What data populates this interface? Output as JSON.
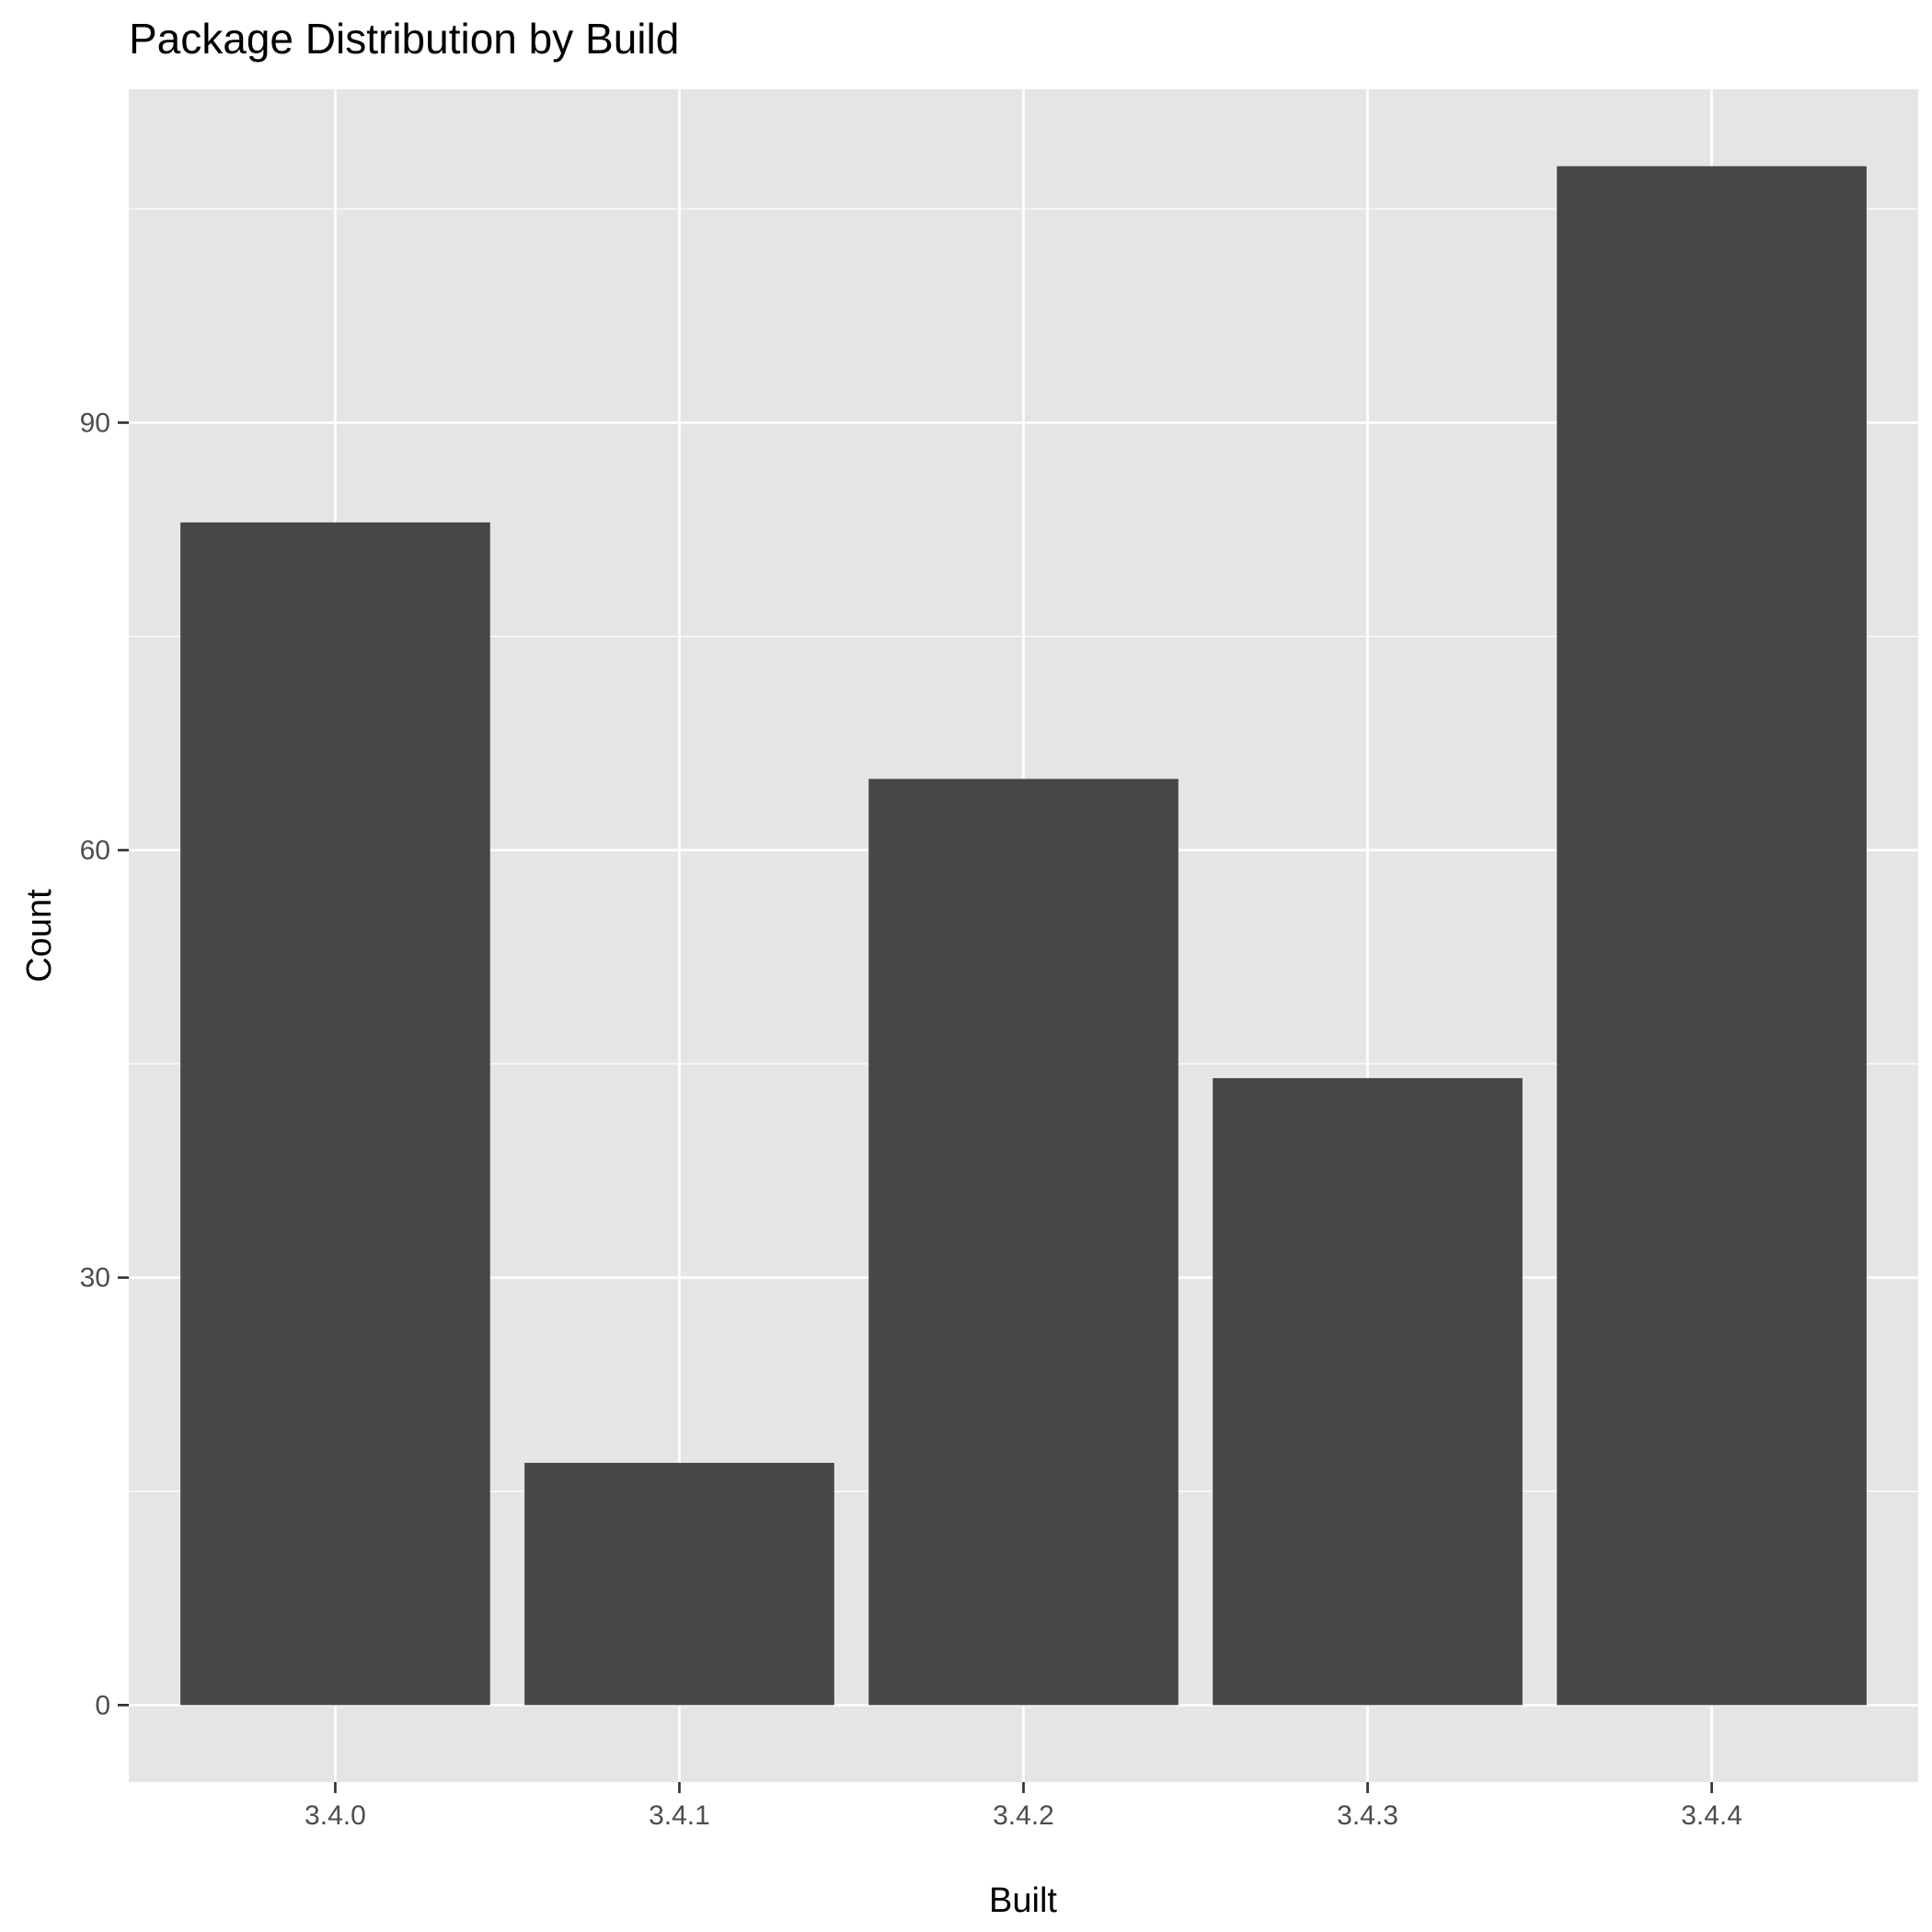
{
  "chart_data": {
    "type": "bar",
    "title": "Package Distribution by Build",
    "xlabel": "Built",
    "ylabel": "Count",
    "categories": [
      "3.4.0",
      "3.4.1",
      "3.4.2",
      "3.4.3",
      "3.4.4"
    ],
    "values": [
      83,
      17,
      65,
      44,
      108
    ],
    "yticks": [
      0,
      30,
      60,
      90
    ],
    "ylim": [
      -5.4,
      113.4
    ],
    "grid": true,
    "legend": "none",
    "colors": {
      "panel": "#e5e5e5",
      "grid": "#ffffff",
      "bar": "#474747"
    }
  }
}
